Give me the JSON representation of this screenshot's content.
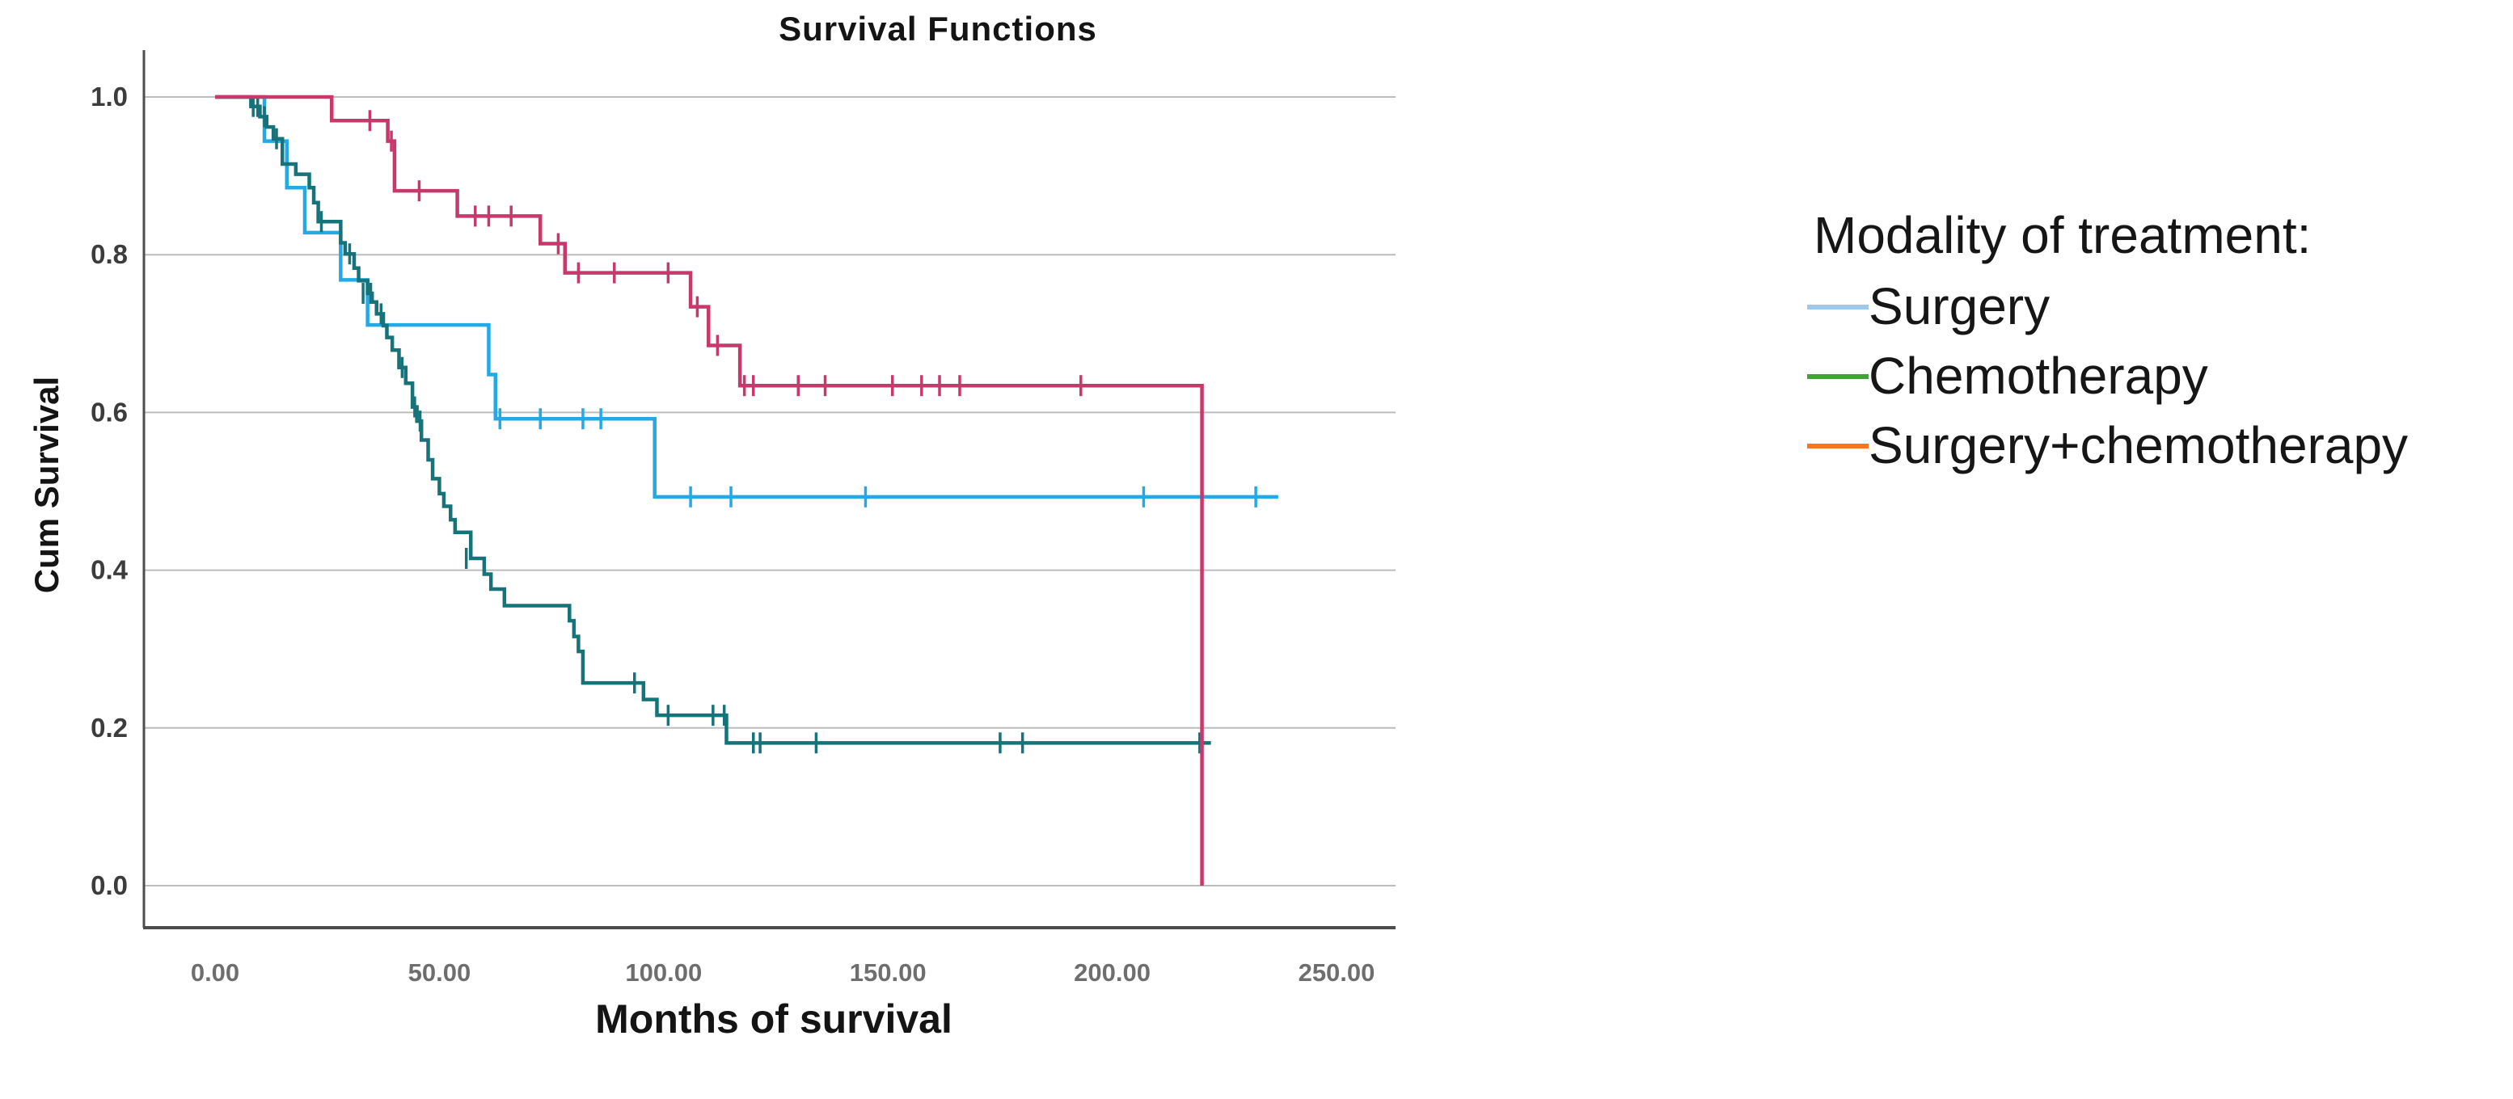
{
  "title": "Survival Functions",
  "axes": {
    "x_label": "Months of survival",
    "y_label": "Cum Survival",
    "x_ticks": [
      {
        "label": "0.00",
        "value": 0
      },
      {
        "label": "50.00",
        "value": 50
      },
      {
        "label": "100.00",
        "value": 100
      },
      {
        "label": "150.00",
        "value": 150
      },
      {
        "label": "200.00",
        "value": 200
      },
      {
        "label": "250.00",
        "value": 250
      }
    ],
    "y_ticks": [
      {
        "label": "1.0",
        "value": 1.0
      },
      {
        "label": "0.8",
        "value": 0.8
      },
      {
        "label": "0.6",
        "value": 0.6
      },
      {
        "label": "0.4",
        "value": 0.4
      },
      {
        "label": "0.2",
        "value": 0.2
      },
      {
        "label": "0.0",
        "value": 0.0
      }
    ]
  },
  "legend": {
    "title": "Modality of treatment:",
    "items": [
      {
        "label": "Surgery",
        "swatch_color": "#9fc9e8"
      },
      {
        "label": "Chemotherapy",
        "swatch_color": "#44a13a"
      },
      {
        "label": "Surgery+chemotherapy",
        "swatch_color": "#f7761f"
      }
    ]
  },
  "colors": {
    "grid": "#bcbcbc",
    "axis": "#4d4d4d",
    "background": "#ffffff"
  },
  "chart_data": {
    "type": "line",
    "subtype": "kaplan-meier-step",
    "title": "Survival Functions",
    "xlabel": "Months of survival",
    "ylabel": "Cum Survival",
    "xlim": [
      0,
      263
    ],
    "ylim": [
      0.0,
      1.0
    ],
    "grid": "horizontal",
    "legend_position": "right-outside",
    "series": [
      {
        "name": "Surgery",
        "color": "#24a9e5",
        "end_t": 237,
        "steps": [
          [
            0,
            1.0
          ],
          [
            11,
            0.944
          ],
          [
            16,
            0.885
          ],
          [
            20,
            0.828
          ],
          [
            28,
            0.768
          ],
          [
            34,
            0.711
          ],
          [
            61,
            0.648
          ],
          [
            62.5,
            0.592
          ],
          [
            98,
            0.493
          ]
        ],
        "censors": [
          [
            63.5,
            0.592
          ],
          [
            72.5,
            0.592
          ],
          [
            82,
            0.592
          ],
          [
            86,
            0.592
          ],
          [
            106,
            0.493
          ],
          [
            115,
            0.493
          ],
          [
            145,
            0.493
          ],
          [
            207,
            0.493
          ],
          [
            232,
            0.493
          ]
        ]
      },
      {
        "name": "Chemotherapy",
        "color": "#17737a",
        "end_t": 222,
        "steps": [
          [
            0,
            1.0
          ],
          [
            8,
            0.988
          ],
          [
            10,
            0.975
          ],
          [
            11.5,
            0.962
          ],
          [
            13,
            0.947
          ],
          [
            15,
            0.915
          ],
          [
            18,
            0.902
          ],
          [
            21,
            0.885
          ],
          [
            22,
            0.866
          ],
          [
            23,
            0.842
          ],
          [
            28,
            0.815
          ],
          [
            29,
            0.801
          ],
          [
            31,
            0.783
          ],
          [
            32,
            0.767
          ],
          [
            34,
            0.751
          ],
          [
            35,
            0.74
          ],
          [
            36,
            0.725
          ],
          [
            37.5,
            0.71
          ],
          [
            38.3,
            0.695
          ],
          [
            39.5,
            0.679
          ],
          [
            41,
            0.657
          ],
          [
            42.5,
            0.637
          ],
          [
            44,
            0.607
          ],
          [
            45,
            0.589
          ],
          [
            46,
            0.565
          ],
          [
            47.5,
            0.54
          ],
          [
            48.5,
            0.516
          ],
          [
            50,
            0.497
          ],
          [
            51,
            0.481
          ],
          [
            52.5,
            0.464
          ],
          [
            53.5,
            0.448
          ],
          [
            57,
            0.415
          ],
          [
            60,
            0.395
          ],
          [
            61.5,
            0.376
          ],
          [
            64.5,
            0.355
          ],
          [
            79,
            0.336
          ],
          [
            80,
            0.316
          ],
          [
            81,
            0.297
          ],
          [
            82,
            0.257
          ],
          [
            95.5,
            0.236
          ],
          [
            98.5,
            0.216
          ],
          [
            114,
            0.181
          ]
        ],
        "censors": [
          [
            8.5,
            0.988
          ],
          [
            9.5,
            0.988
          ],
          [
            11,
            0.975
          ],
          [
            13.7,
            0.947
          ],
          [
            23.7,
            0.842
          ],
          [
            30,
            0.801
          ],
          [
            33,
            0.751
          ],
          [
            34.7,
            0.751
          ],
          [
            37,
            0.725
          ],
          [
            41.7,
            0.657
          ],
          [
            44.5,
            0.607
          ],
          [
            45.7,
            0.589
          ],
          [
            56,
            0.415
          ],
          [
            93.5,
            0.257
          ],
          [
            101,
            0.216
          ],
          [
            111,
            0.216
          ],
          [
            113.5,
            0.216
          ],
          [
            120,
            0.181
          ],
          [
            121.5,
            0.181
          ],
          [
            134,
            0.181
          ],
          [
            175,
            0.181
          ],
          [
            180,
            0.181
          ],
          [
            219.5,
            0.181
          ]
        ]
      },
      {
        "name": "Surgery+chemotherapy",
        "color": "#c8396b",
        "end_t": 220,
        "steps": [
          [
            0,
            1.0
          ],
          [
            26,
            0.97
          ],
          [
            38.5,
            0.944
          ],
          [
            40,
            0.881
          ],
          [
            54,
            0.849
          ],
          [
            72.5,
            0.814
          ],
          [
            78,
            0.777
          ],
          [
            106,
            0.734
          ],
          [
            110,
            0.685
          ],
          [
            117,
            0.634
          ],
          [
            220,
            0.0
          ]
        ],
        "censors": [
          [
            34.5,
            0.97
          ],
          [
            39.3,
            0.944
          ],
          [
            45.5,
            0.881
          ],
          [
            58,
            0.849
          ],
          [
            61,
            0.849
          ],
          [
            66,
            0.849
          ],
          [
            76.5,
            0.814
          ],
          [
            81,
            0.777
          ],
          [
            89,
            0.777
          ],
          [
            101,
            0.777
          ],
          [
            107.5,
            0.734
          ],
          [
            112,
            0.685
          ],
          [
            118,
            0.634
          ],
          [
            120,
            0.634
          ],
          [
            130,
            0.634
          ],
          [
            136,
            0.634
          ],
          [
            151,
            0.634
          ],
          [
            157.5,
            0.634
          ],
          [
            161.5,
            0.634
          ],
          [
            166,
            0.634
          ],
          [
            193,
            0.634
          ]
        ]
      }
    ]
  }
}
